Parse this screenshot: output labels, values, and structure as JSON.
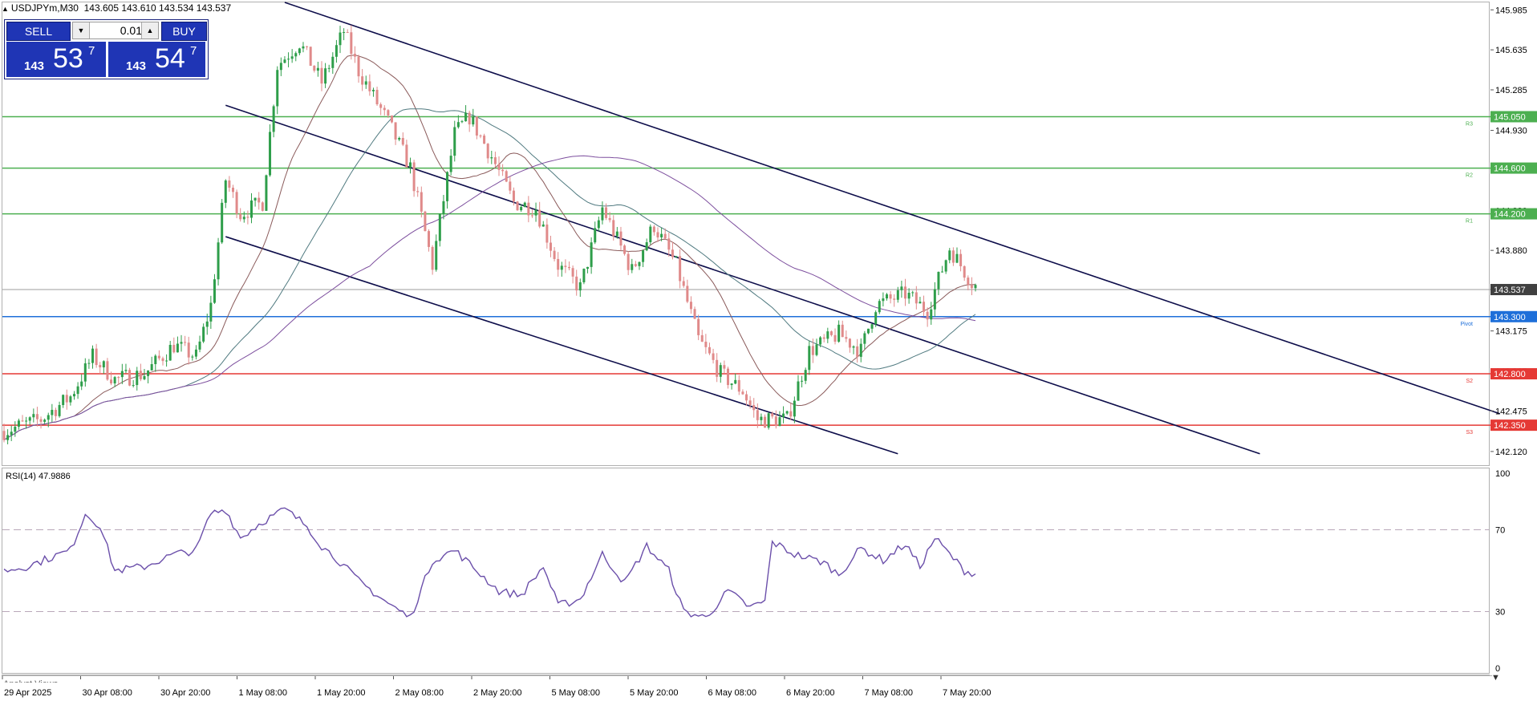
{
  "header": {
    "symbol": "USDJPYm,M30",
    "ohlc": "143.605 143.610 143.534 143.537"
  },
  "trade_panel": {
    "sell_label": "SELL",
    "buy_label": "BUY",
    "lot": "0.01",
    "sell_price": {
      "prefix": "143",
      "big": "53",
      "sup": "7"
    },
    "buy_price": {
      "prefix": "143",
      "big": "54",
      "sup": "7"
    }
  },
  "analyst_label": "Analyst Views",
  "chart_data": [
    {
      "type": "candlestick",
      "symbol": "USDJPYm",
      "timeframe": "M30",
      "y_range": [
        142.0,
        146.05
      ],
      "y_ticks": [
        "145.985",
        "145.635",
        "145.285",
        "144.930",
        "144.580",
        "144.230",
        "143.880",
        "143.525",
        "143.175",
        "142.825",
        "142.475",
        "142.120"
      ],
      "x_labels": [
        "29 Apr 2025",
        "30 Apr 08:00",
        "30 Apr 20:00",
        "1 May 08:00",
        "1 May 20:00",
        "2 May 08:00",
        "2 May 20:00",
        "5 May 08:00",
        "5 May 20:00",
        "6 May 08:00",
        "6 May 20:00",
        "7 May 08:00",
        "7 May 20:00"
      ],
      "bar_count": 264,
      "bull_color": "#2e9e4a",
      "bear_color": "#e08a8a",
      "last_price": {
        "value": 143.537,
        "label": "143.537",
        "color": "#404040"
      },
      "levels": [
        {
          "name": "R3",
          "value": 145.05,
          "label": "145.050",
          "color": "#4caf50"
        },
        {
          "name": "R2",
          "value": 144.6,
          "label": "144.600",
          "color": "#4caf50"
        },
        {
          "name": "R1",
          "value": 144.2,
          "label": "144.200",
          "color": "#4caf50"
        },
        {
          "name": "Pivot",
          "value": 143.3,
          "label": "143.300",
          "color": "#1e6fd9"
        },
        {
          "name": "S2",
          "value": 142.8,
          "label": "142.800",
          "color": "#e53935"
        },
        {
          "name": "S3",
          "value": 142.35,
          "label": "142.350",
          "color": "#e53935"
        }
      ],
      "price_path": [
        [
          0,
          142.3
        ],
        [
          10,
          142.4
        ],
        [
          18,
          142.6
        ],
        [
          24,
          142.95
        ],
        [
          30,
          142.75
        ],
        [
          38,
          142.8
        ],
        [
          46,
          143.05
        ],
        [
          52,
          142.95
        ],
        [
          56,
          143.4
        ],
        [
          60,
          144.5
        ],
        [
          64,
          144.2
        ],
        [
          70,
          144.3
        ],
        [
          74,
          145.5
        ],
        [
          80,
          145.7
        ],
        [
          86,
          145.35
        ],
        [
          92,
          145.8
        ],
        [
          96,
          145.45
        ],
        [
          104,
          145.0
        ],
        [
          110,
          144.6
        ],
        [
          116,
          143.75
        ],
        [
          122,
          144.9
        ],
        [
          126,
          145.05
        ],
        [
          132,
          144.7
        ],
        [
          138,
          144.3
        ],
        [
          144,
          144.25
        ],
        [
          150,
          143.75
        ],
        [
          156,
          143.55
        ],
        [
          162,
          144.25
        ],
        [
          170,
          143.7
        ],
        [
          176,
          144.1
        ],
        [
          182,
          143.75
        ],
        [
          188,
          143.1
        ],
        [
          194,
          142.8
        ],
        [
          200,
          142.65
        ],
        [
          204,
          142.4
        ],
        [
          212,
          142.4
        ],
        [
          218,
          143.0
        ],
        [
          226,
          143.15
        ],
        [
          232,
          143.0
        ],
        [
          236,
          143.4
        ],
        [
          244,
          143.5
        ],
        [
          250,
          143.35
        ],
        [
          256,
          143.9
        ],
        [
          262,
          143.6
        ],
        [
          264,
          143.537
        ]
      ],
      "moving_averages": [
        {
          "name": "fast",
          "color": "#8a5a5a",
          "period": 20
        },
        {
          "name": "medium",
          "color": "#507a80",
          "period": 50
        },
        {
          "name": "slow",
          "color": "#7d4f9e",
          "period": 100
        }
      ],
      "trend_channel": {
        "color": "#0d0d4a",
        "lines": [
          {
            "from": [
              76,
              146.05
            ],
            "to": [
              405,
              142.45
            ]
          },
          {
            "from": [
              60,
              145.15
            ],
            "to": [
              340,
              142.1
            ]
          },
          {
            "from": [
              60,
              144.0
            ],
            "to": [
              242,
              142.1
            ]
          }
        ]
      }
    },
    {
      "type": "line",
      "title": "RSI(14) 47.9886",
      "indicator": "RSI",
      "period": 14,
      "last_value": 47.9886,
      "y_range": [
        0,
        100
      ],
      "y_ticks": [
        100,
        70,
        30,
        0
      ],
      "levels": [
        70,
        30
      ],
      "color": "#6b4faa",
      "path": [
        [
          0,
          50
        ],
        [
          6,
          52
        ],
        [
          12,
          56
        ],
        [
          18,
          60
        ],
        [
          22,
          78
        ],
        [
          26,
          72
        ],
        [
          30,
          50
        ],
        [
          38,
          52
        ],
        [
          46,
          58
        ],
        [
          52,
          60
        ],
        [
          56,
          78
        ],
        [
          60,
          80
        ],
        [
          64,
          66
        ],
        [
          70,
          74
        ],
        [
          76,
          80
        ],
        [
          82,
          72
        ],
        [
          86,
          62
        ],
        [
          90,
          56
        ],
        [
          96,
          45
        ],
        [
          104,
          34
        ],
        [
          110,
          27
        ],
        [
          116,
          55
        ],
        [
          122,
          60
        ],
        [
          128,
          50
        ],
        [
          134,
          40
        ],
        [
          140,
          38
        ],
        [
          146,
          52
        ],
        [
          150,
          33
        ],
        [
          156,
          36
        ],
        [
          162,
          58
        ],
        [
          168,
          44
        ],
        [
          174,
          62
        ],
        [
          180,
          50
        ],
        [
          184,
          30
        ],
        [
          190,
          27
        ],
        [
          196,
          40
        ],
        [
          202,
          32
        ],
        [
          206,
          35
        ],
        [
          208,
          64
        ],
        [
          214,
          58
        ],
        [
          222,
          54
        ],
        [
          226,
          48
        ],
        [
          232,
          61
        ],
        [
          238,
          55
        ],
        [
          244,
          63
        ],
        [
          248,
          52
        ],
        [
          252,
          66
        ],
        [
          256,
          58
        ],
        [
          260,
          50
        ],
        [
          264,
          48
        ]
      ]
    }
  ]
}
